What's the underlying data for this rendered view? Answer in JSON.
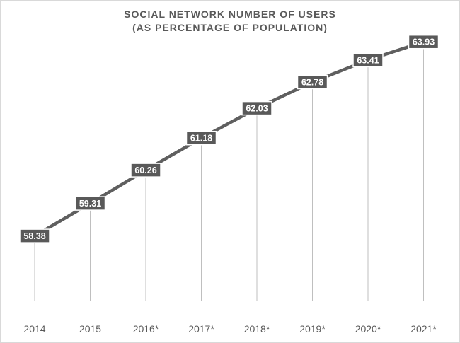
{
  "chart_data": {
    "type": "line",
    "title": "SOCIAL NETWORK NUMBER OF USERS",
    "subtitle": "(AS PERCENTAGE OF POPULATION)",
    "categories": [
      "2014",
      "2015",
      "2016*",
      "2017*",
      "2018*",
      "2019*",
      "2020*",
      "2021*"
    ],
    "values": [
      58.38,
      59.31,
      60.26,
      61.18,
      62.03,
      62.78,
      63.41,
      63.93
    ],
    "data_labels": [
      "58.38",
      "59.31",
      "60.26",
      "61.18",
      "62.03",
      "62.78",
      "63.41",
      "63.93"
    ],
    "xlabel": "",
    "ylabel": "",
    "ylim": [
      55.5,
      64.5
    ],
    "grid": false,
    "drop_lines": true,
    "colors": {
      "line": "#5f5f5f",
      "label_box": "#595959",
      "label_text": "#ffffff",
      "drop_line": "#bfbfbf",
      "axis_text": "#595959"
    }
  }
}
